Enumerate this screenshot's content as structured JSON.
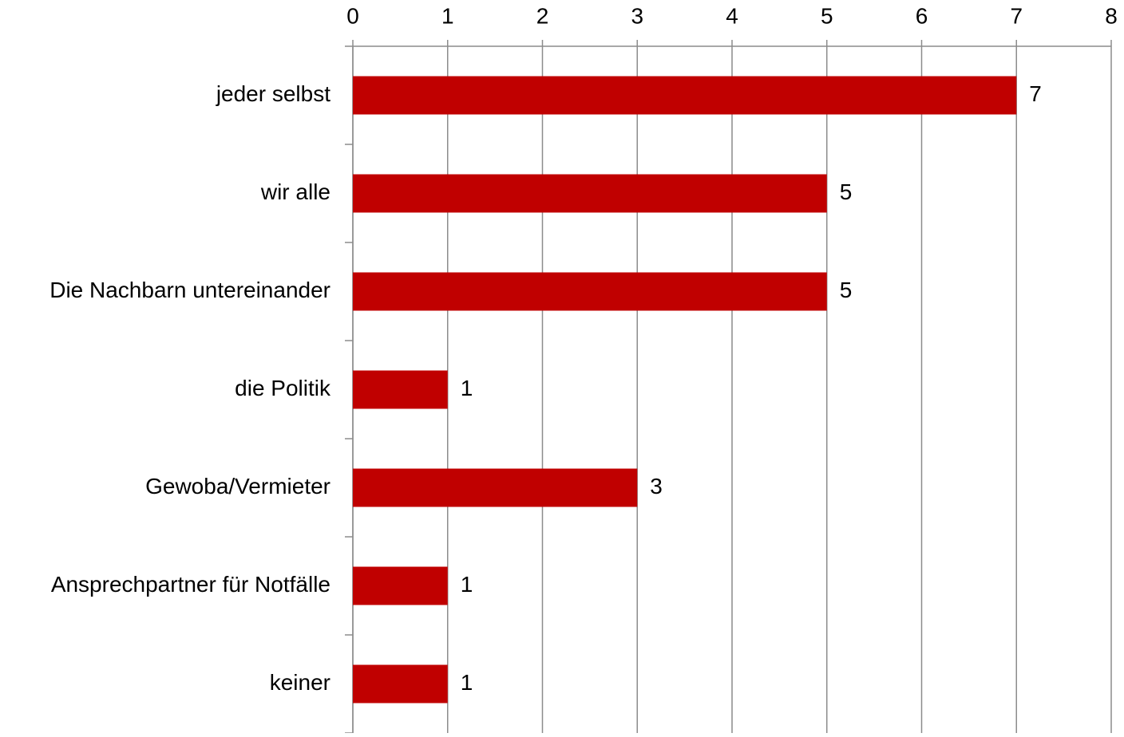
{
  "chart_data": {
    "type": "hbar",
    "categories": [
      "jeder selbst",
      "wir alle",
      "Die Nachbarn untereinander",
      "die Politik",
      "Gewoba/Vermieter",
      "Ansprechpartner für Notfälle",
      "keiner"
    ],
    "values": [
      7,
      5,
      5,
      1,
      3,
      1,
      1
    ],
    "color": "#c00000",
    "xlim": [
      0,
      8
    ],
    "xticks": [
      0,
      1,
      2,
      3,
      4,
      5,
      6,
      7,
      8
    ],
    "grid": true,
    "axis_position": "top"
  }
}
